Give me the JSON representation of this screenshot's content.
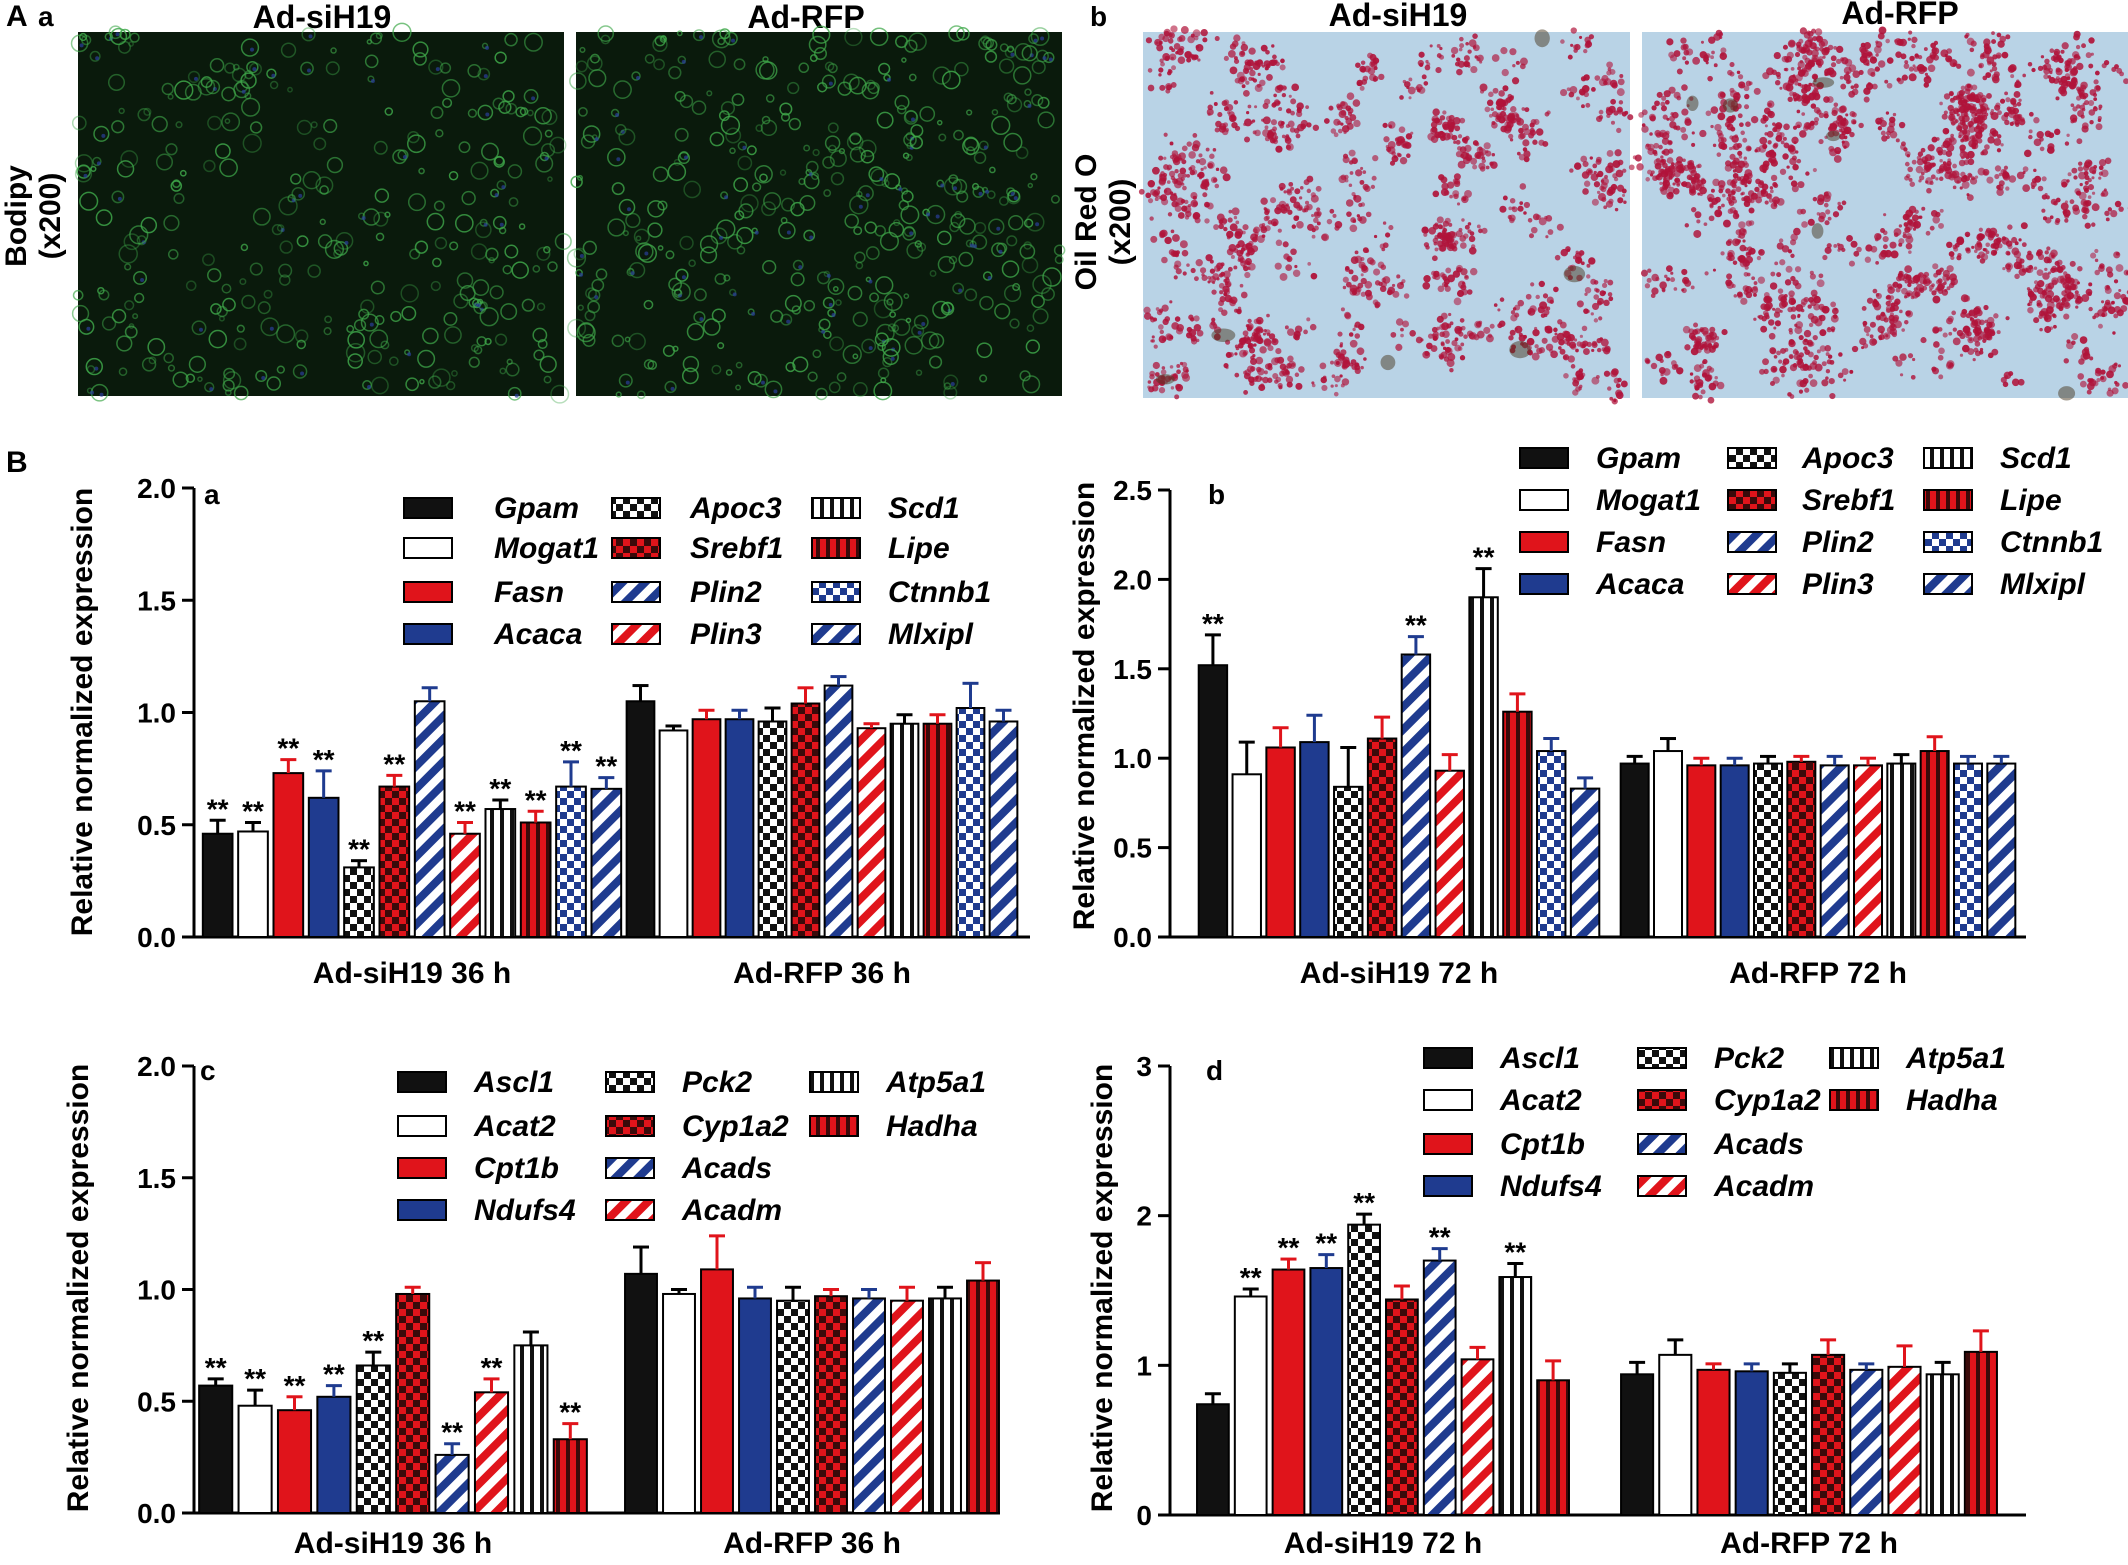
{
  "figure": {
    "panel_A": "A",
    "panel_B": "B",
    "A_a": {
      "sub": "a",
      "left": "Ad-siH19",
      "right": "Ad-RFP",
      "stain": "Bodipy",
      "mag": "(x200)"
    },
    "A_b": {
      "sub": "b",
      "left": "Ad-siH19",
      "right": "Ad-RFP",
      "stain": "Oil Red O",
      "mag": "(x200)"
    }
  },
  "colors": {
    "black": "#111111",
    "white": "#ffffff",
    "red": "#e0141b",
    "blue": "#1f3b8f",
    "bodipy_bg": "#0a1a0c",
    "bodipy_cell": "#3fa84a",
    "oil_bg": "#b9d3e6",
    "oil_drop": "#b0133a"
  },
  "chart_data": [
    {
      "id": "a",
      "type": "bar",
      "ylabel": "Relative normalized expression",
      "ylim": [
        0,
        2.0
      ],
      "yticks": [
        "0.0",
        "0.5",
        "1.0",
        "1.5",
        "2.0"
      ],
      "groups": [
        "Ad-siH19 36 h",
        "Ad-RFP 36 h"
      ],
      "legend": [
        "Gpam",
        "Mogat1",
        "Fasn",
        "Acaca",
        "Apoc3",
        "Srebf1",
        "Plin2",
        "Plin3",
        "Scd1",
        "Lipe",
        "Ctnnb1",
        "Mlxipl"
      ],
      "series": [
        {
          "name": "Gpam",
          "style": "solid-black",
          "values": [
            0.46,
            1.05
          ],
          "errors": [
            0.06,
            0.07
          ],
          "sig": [
            "**",
            ""
          ]
        },
        {
          "name": "Mogat1",
          "style": "white",
          "values": [
            0.47,
            0.92
          ],
          "errors": [
            0.04,
            0.02
          ],
          "sig": [
            "**",
            ""
          ]
        },
        {
          "name": "Fasn",
          "style": "solid-red",
          "values": [
            0.73,
            0.97
          ],
          "errors": [
            0.06,
            0.04
          ],
          "sig": [
            "**",
            ""
          ]
        },
        {
          "name": "Acaca",
          "style": "solid-blue",
          "values": [
            0.62,
            0.97
          ],
          "errors": [
            0.12,
            0.04
          ],
          "sig": [
            "**",
            ""
          ]
        },
        {
          "name": "Apoc3",
          "style": "check-black",
          "values": [
            0.31,
            0.96
          ],
          "errors": [
            0.03,
            0.06
          ],
          "sig": [
            "**",
            ""
          ]
        },
        {
          "name": "Srebf1",
          "style": "check-red",
          "values": [
            0.67,
            1.04
          ],
          "errors": [
            0.05,
            0.07
          ],
          "sig": [
            "**",
            ""
          ]
        },
        {
          "name": "Plin2",
          "style": "diag-blue",
          "values": [
            1.05,
            1.12
          ],
          "errors": [
            0.06,
            0.04
          ],
          "sig": [
            "",
            ""
          ]
        },
        {
          "name": "Plin3",
          "style": "diag-red",
          "values": [
            0.46,
            0.93
          ],
          "errors": [
            0.05,
            0.02
          ],
          "sig": [
            "**",
            ""
          ]
        },
        {
          "name": "Scd1",
          "style": "vline-black",
          "values": [
            0.57,
            0.95
          ],
          "errors": [
            0.04,
            0.04
          ],
          "sig": [
            "**",
            ""
          ]
        },
        {
          "name": "Lipe",
          "style": "vline-red",
          "values": [
            0.51,
            0.95
          ],
          "errors": [
            0.05,
            0.04
          ],
          "sig": [
            "**",
            ""
          ]
        },
        {
          "name": "Ctnnb1",
          "style": "check-blue",
          "values": [
            0.67,
            1.02
          ],
          "errors": [
            0.11,
            0.11
          ],
          "sig": [
            "**",
            ""
          ]
        },
        {
          "name": "Mlxipl",
          "style": "diag-blue",
          "values": [
            0.66,
            0.96
          ],
          "errors": [
            0.05,
            0.05
          ],
          "sig": [
            "**",
            ""
          ]
        }
      ]
    },
    {
      "id": "b",
      "type": "bar",
      "ylabel": "Relative normalized expression",
      "ylim": [
        0,
        2.5
      ],
      "yticks": [
        "0.0",
        "0.5",
        "1.0",
        "1.5",
        "2.0",
        "2.5"
      ],
      "groups": [
        "Ad-siH19 72 h",
        "Ad-RFP 72 h"
      ],
      "legend": [
        "Gpam",
        "Mogat1",
        "Fasn",
        "Acaca",
        "Apoc3",
        "Srebf1",
        "Plin2",
        "Plin3",
        "Scd1",
        "Lipe",
        "Ctnnb1",
        "Mlxipl"
      ],
      "series": [
        {
          "name": "Gpam",
          "style": "solid-black",
          "values": [
            1.52,
            0.97
          ],
          "errors": [
            0.17,
            0.04
          ],
          "sig": [
            "**",
            ""
          ]
        },
        {
          "name": "Mogat1",
          "style": "white",
          "values": [
            0.91,
            1.04
          ],
          "errors": [
            0.18,
            0.07
          ],
          "sig": [
            "",
            ""
          ]
        },
        {
          "name": "Fasn",
          "style": "solid-red",
          "values": [
            1.06,
            0.96
          ],
          "errors": [
            0.11,
            0.04
          ],
          "sig": [
            "",
            ""
          ]
        },
        {
          "name": "Acaca",
          "style": "solid-blue",
          "values": [
            1.09,
            0.96
          ],
          "errors": [
            0.15,
            0.04
          ],
          "sig": [
            "",
            ""
          ]
        },
        {
          "name": "Apoc3",
          "style": "check-black",
          "values": [
            0.84,
            0.97
          ],
          "errors": [
            0.22,
            0.04
          ],
          "sig": [
            "",
            ""
          ]
        },
        {
          "name": "Srebf1",
          "style": "check-red",
          "values": [
            1.11,
            0.98
          ],
          "errors": [
            0.12,
            0.03
          ],
          "sig": [
            "",
            ""
          ]
        },
        {
          "name": "Plin2",
          "style": "diag-blue",
          "values": [
            1.58,
            0.96
          ],
          "errors": [
            0.1,
            0.05
          ],
          "sig": [
            "**",
            ""
          ]
        },
        {
          "name": "Plin3",
          "style": "diag-red",
          "values": [
            0.93,
            0.96
          ],
          "errors": [
            0.09,
            0.04
          ],
          "sig": [
            "",
            ""
          ]
        },
        {
          "name": "Scd1",
          "style": "vline-black",
          "values": [
            1.9,
            0.97
          ],
          "errors": [
            0.16,
            0.05
          ],
          "sig": [
            "**",
            ""
          ]
        },
        {
          "name": "Lipe",
          "style": "vline-red",
          "values": [
            1.26,
            1.04
          ],
          "errors": [
            0.1,
            0.08
          ],
          "sig": [
            "",
            ""
          ]
        },
        {
          "name": "Ctnnb1",
          "style": "check-blue",
          "values": [
            1.04,
            0.97
          ],
          "errors": [
            0.07,
            0.04
          ],
          "sig": [
            "",
            ""
          ]
        },
        {
          "name": "Mlxipl",
          "style": "diag-blue",
          "values": [
            0.83,
            0.97
          ],
          "errors": [
            0.06,
            0.04
          ],
          "sig": [
            "",
            ""
          ]
        }
      ]
    },
    {
      "id": "c",
      "type": "bar",
      "ylabel": "Relative normalized expression",
      "ylim": [
        0,
        2.0
      ],
      "yticks": [
        "0.0",
        "0.5",
        "1.0",
        "1.5",
        "2.0"
      ],
      "groups": [
        "Ad-siH19 36 h",
        "Ad-RFP 36 h"
      ],
      "legend": [
        "Ascl1",
        "Acat2",
        "Cpt1b",
        "Ndufs4",
        "Pck2",
        "Cyp1a2",
        "Acads",
        "Acadm",
        "Atp5a1",
        "Hadha"
      ],
      "series": [
        {
          "name": "Ascl1",
          "style": "solid-black",
          "values": [
            0.57,
            1.07
          ],
          "errors": [
            0.03,
            0.12
          ],
          "sig": [
            "**",
            ""
          ]
        },
        {
          "name": "Acat2",
          "style": "white",
          "values": [
            0.48,
            0.98
          ],
          "errors": [
            0.07,
            0.02
          ],
          "sig": [
            "**",
            ""
          ]
        },
        {
          "name": "Cpt1b",
          "style": "solid-red",
          "values": [
            0.46,
            1.09
          ],
          "errors": [
            0.06,
            0.15
          ],
          "sig": [
            "**",
            ""
          ]
        },
        {
          "name": "Ndufs4",
          "style": "solid-blue",
          "values": [
            0.52,
            0.96
          ],
          "errors": [
            0.05,
            0.05
          ],
          "sig": [
            "**",
            ""
          ]
        },
        {
          "name": "Pck2",
          "style": "check-black",
          "values": [
            0.66,
            0.95
          ],
          "errors": [
            0.06,
            0.06
          ],
          "sig": [
            "**",
            ""
          ]
        },
        {
          "name": "Cyp1a2",
          "style": "check-red",
          "values": [
            0.98,
            0.97
          ],
          "errors": [
            0.03,
            0.03
          ],
          "sig": [
            "",
            ""
          ]
        },
        {
          "name": "Acads",
          "style": "diag-blue",
          "values": [
            0.26,
            0.96
          ],
          "errors": [
            0.05,
            0.04
          ],
          "sig": [
            "**",
            ""
          ]
        },
        {
          "name": "Acadm",
          "style": "diag-red",
          "values": [
            0.54,
            0.95
          ],
          "errors": [
            0.06,
            0.06
          ],
          "sig": [
            "**",
            ""
          ]
        },
        {
          "name": "Atp5a1",
          "style": "vline-black",
          "values": [
            0.75,
            0.96
          ],
          "errors": [
            0.06,
            0.05
          ],
          "sig": [
            "",
            ""
          ]
        },
        {
          "name": "Hadha",
          "style": "vline-red",
          "values": [
            0.33,
            1.04
          ],
          "errors": [
            0.07,
            0.08
          ],
          "sig": [
            "**",
            ""
          ]
        }
      ]
    },
    {
      "id": "d",
      "type": "bar",
      "ylabel": "Relative normalized expression",
      "ylim": [
        0,
        3
      ],
      "yticks": [
        "0",
        "1",
        "2",
        "3"
      ],
      "groups": [
        "Ad-siH19 72 h",
        "Ad-RFP 72 h"
      ],
      "legend": [
        "Ascl1",
        "Acat2",
        "Cpt1b",
        "Ndufs4",
        "Pck2",
        "Cyp1a2",
        "Acads",
        "Acadm",
        "Atp5a1",
        "Hadha"
      ],
      "series": [
        {
          "name": "Ascl1",
          "style": "solid-black",
          "values": [
            0.74,
            0.94
          ],
          "errors": [
            0.07,
            0.08
          ],
          "sig": [
            "",
            ""
          ]
        },
        {
          "name": "Acat2",
          "style": "white",
          "values": [
            1.46,
            1.07
          ],
          "errors": [
            0.05,
            0.1
          ],
          "sig": [
            "**",
            ""
          ]
        },
        {
          "name": "Cpt1b",
          "style": "solid-red",
          "values": [
            1.64,
            0.97
          ],
          "errors": [
            0.07,
            0.04
          ],
          "sig": [
            "**",
            ""
          ]
        },
        {
          "name": "Ndufs4",
          "style": "solid-blue",
          "values": [
            1.65,
            0.96
          ],
          "errors": [
            0.09,
            0.05
          ],
          "sig": [
            "**",
            ""
          ]
        },
        {
          "name": "Pck2",
          "style": "check-black",
          "values": [
            1.94,
            0.95
          ],
          "errors": [
            0.07,
            0.06
          ],
          "sig": [
            "**",
            ""
          ]
        },
        {
          "name": "Cyp1a2",
          "style": "check-red",
          "values": [
            1.44,
            1.07
          ],
          "errors": [
            0.09,
            0.1
          ],
          "sig": [
            "",
            ""
          ]
        },
        {
          "name": "Acads",
          "style": "diag-blue",
          "values": [
            1.7,
            0.97
          ],
          "errors": [
            0.08,
            0.04
          ],
          "sig": [
            "**",
            ""
          ]
        },
        {
          "name": "Acadm",
          "style": "diag-red",
          "values": [
            1.04,
            0.99
          ],
          "errors": [
            0.08,
            0.14
          ],
          "sig": [
            "",
            ""
          ]
        },
        {
          "name": "Atp5a1",
          "style": "vline-black",
          "values": [
            1.59,
            0.94
          ],
          "errors": [
            0.09,
            0.08
          ],
          "sig": [
            "**",
            ""
          ]
        },
        {
          "name": "Hadha",
          "style": "vline-red",
          "values": [
            0.9,
            1.09
          ],
          "errors": [
            0.13,
            0.14
          ],
          "sig": [
            "",
            ""
          ]
        }
      ]
    }
  ]
}
